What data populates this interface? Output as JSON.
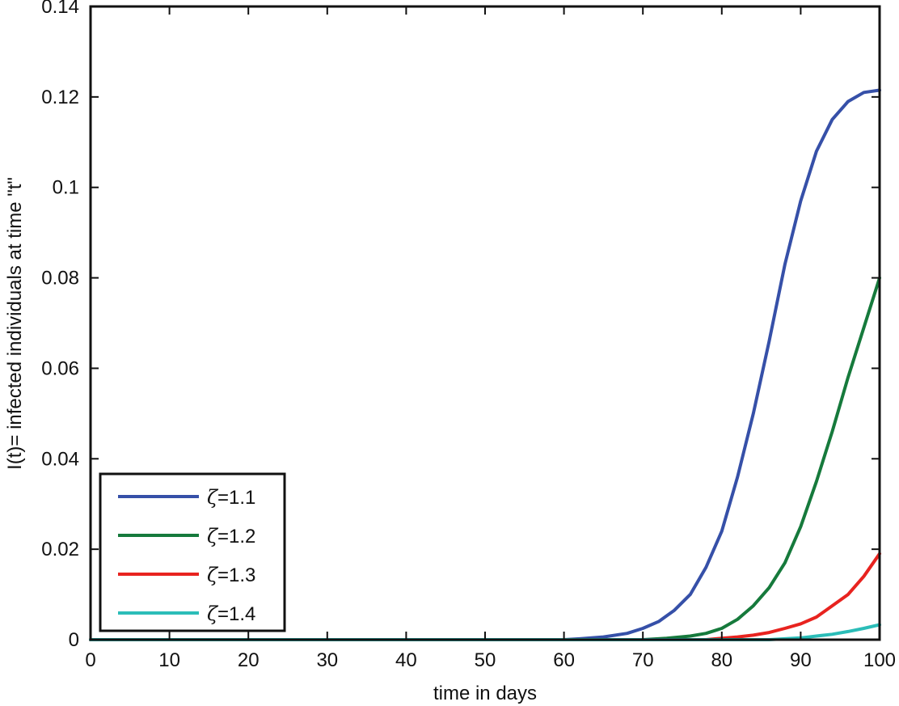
{
  "chart_data": {
    "type": "line",
    "title": "",
    "xlabel": "time in days",
    "ylabel": "I(t)= infected individuals at time \"t\"",
    "xlim": [
      0,
      100
    ],
    "ylim": [
      0,
      0.14
    ],
    "xticks": [
      0,
      10,
      20,
      30,
      40,
      50,
      60,
      70,
      80,
      90,
      100
    ],
    "yticks": [
      0,
      0.02,
      0.04,
      0.06,
      0.08,
      0.1,
      0.12,
      0.14
    ],
    "xtick_labels": [
      "0",
      "10",
      "20",
      "30",
      "40",
      "50",
      "60",
      "70",
      "80",
      "90",
      "100"
    ],
    "ytick_labels": [
      "0",
      "0.02",
      "0.04",
      "0.06",
      "0.08",
      "0.1",
      "0.12",
      "0.14"
    ],
    "grid": false,
    "legend_position": "bottom-left",
    "series": [
      {
        "name": "ζ=1.1",
        "symbol": "ζ",
        "value_text": "=1.1",
        "color": "#3650a8",
        "x": [
          0,
          60,
          62,
          65,
          68,
          70,
          72,
          74,
          76,
          78,
          80,
          82,
          84,
          86,
          88,
          90,
          92,
          94,
          96,
          98,
          100
        ],
        "y": [
          0,
          0,
          0.0002,
          0.0006,
          0.0014,
          0.0025,
          0.004,
          0.0065,
          0.01,
          0.016,
          0.024,
          0.036,
          0.05,
          0.066,
          0.083,
          0.097,
          0.108,
          0.115,
          0.119,
          0.121,
          0.1215
        ]
      },
      {
        "name": "ζ=1.2",
        "symbol": "ζ",
        "value_text": "=1.2",
        "color": "#167a3c",
        "x": [
          0,
          70,
          73,
          76,
          78,
          80,
          82,
          84,
          86,
          88,
          90,
          92,
          94,
          96,
          98,
          100
        ],
        "y": [
          0,
          0,
          0.0003,
          0.0008,
          0.0014,
          0.0025,
          0.0045,
          0.0075,
          0.0115,
          0.017,
          0.025,
          0.035,
          0.046,
          0.058,
          0.069,
          0.08
        ]
      },
      {
        "name": "ζ=1.3",
        "symbol": "ζ",
        "value_text": "=1.3",
        "color": "#e8231f",
        "x": [
          0,
          78,
          80,
          82,
          84,
          86,
          88,
          90,
          92,
          94,
          96,
          98,
          100
        ],
        "y": [
          0,
          0,
          0.0003,
          0.0006,
          0.001,
          0.0016,
          0.0025,
          0.0035,
          0.005,
          0.0075,
          0.01,
          0.014,
          0.019
        ]
      },
      {
        "name": "ζ=1.4",
        "symbol": "ζ",
        "value_text": "=1.4",
        "color": "#2bbdb8",
        "x": [
          0,
          86,
          88,
          90,
          92,
          94,
          96,
          98,
          100
        ],
        "y": [
          0,
          0,
          0.0002,
          0.0004,
          0.0008,
          0.0012,
          0.0018,
          0.0025,
          0.0033
        ]
      }
    ]
  }
}
